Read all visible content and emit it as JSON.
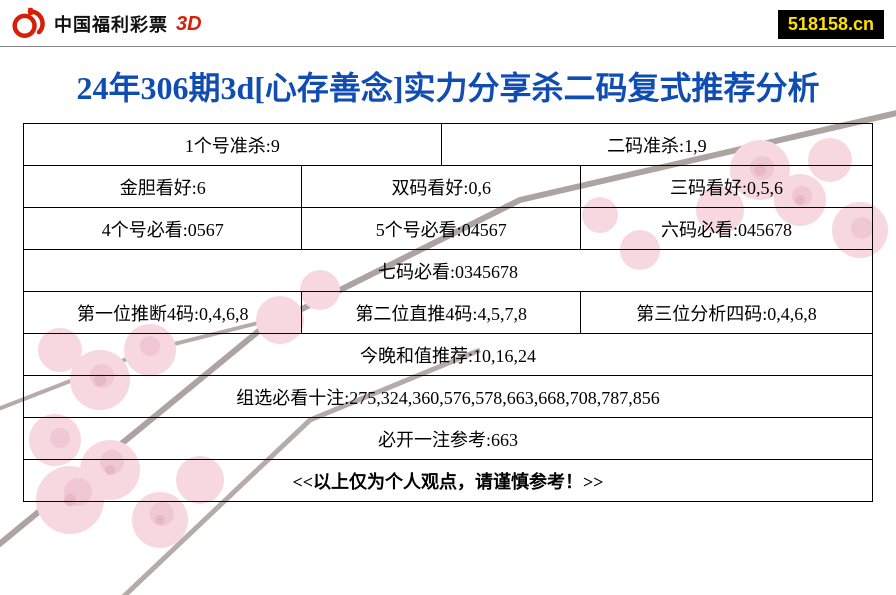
{
  "header": {
    "brand_text": "中国福利彩票",
    "brand_suffix": "3D",
    "site_badge": "518158.cn",
    "logo_color": "#d81e06"
  },
  "title": {
    "text": "24年306期3d[心存善念]实力分享杀二码复式推荐分析",
    "color": "#104db3",
    "font_size": 32
  },
  "table": {
    "border_color": "#000000",
    "font_size": 18,
    "rows": [
      {
        "cells": [
          {
            "text": "1个号准杀:9",
            "colspan": 3
          },
          {
            "text": "二码准杀:1,9",
            "colspan": 3
          }
        ]
      },
      {
        "cells": [
          {
            "text": "金胆看好:6",
            "colspan": 2
          },
          {
            "text": "双码看好:0,6",
            "colspan": 2
          },
          {
            "text": "三码看好:0,5,6",
            "colspan": 2
          }
        ]
      },
      {
        "cells": [
          {
            "text": "4个号必看:0567",
            "colspan": 2
          },
          {
            "text": "5个号必看:04567",
            "colspan": 2
          },
          {
            "text": "六码必看:045678",
            "colspan": 2
          }
        ]
      },
      {
        "cells": [
          {
            "text": "七码必看:0345678",
            "colspan": 6
          }
        ]
      },
      {
        "cells": [
          {
            "text": "第一位推断4码:0,4,6,8",
            "colspan": 2
          },
          {
            "text": "第二位直推4码:4,5,7,8",
            "colspan": 2
          },
          {
            "text": "第三位分析四码:0,4,6,8",
            "colspan": 2
          }
        ]
      },
      {
        "cells": [
          {
            "text": "今晚和值推荐:10,16,24",
            "colspan": 6
          }
        ]
      },
      {
        "cells": [
          {
            "text": "组选必看十注:275,324,360,576,578,663,668,708,787,856",
            "colspan": 6
          }
        ]
      },
      {
        "cells": [
          {
            "text": "必开一注参考:663",
            "colspan": 6
          }
        ]
      },
      {
        "cells": [
          {
            "text": "<<以上仅为个人观点，请谨慎参考！>>",
            "colspan": 6
          }
        ]
      }
    ]
  },
  "background": {
    "flower_colors": [
      "#f4c6d2",
      "#e7a4b8",
      "#d77f9b",
      "#c45a7d"
    ],
    "branch_color": "#6b5a55"
  }
}
